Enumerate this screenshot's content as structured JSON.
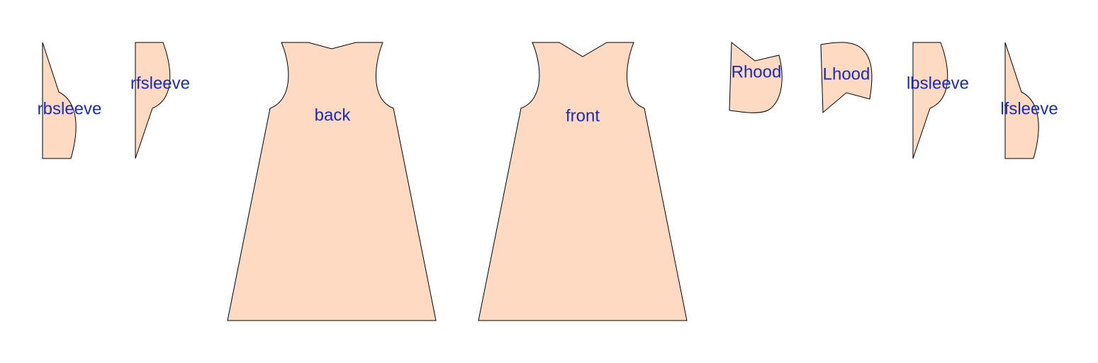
{
  "colors": {
    "piece_fill": "#ffdac2",
    "piece_outline": "#000000",
    "label": "#1a2ab8",
    "background": "#ffffff"
  },
  "pieces": [
    {
      "id": "rbsleeve",
      "label": "rbsleeve"
    },
    {
      "id": "rfsleeve",
      "label": "rfsleeve"
    },
    {
      "id": "back",
      "label": "back"
    },
    {
      "id": "front",
      "label": "front"
    },
    {
      "id": "Rhood",
      "label": "Rhood"
    },
    {
      "id": "Lhood",
      "label": "Lhood"
    },
    {
      "id": "lbsleeve",
      "label": "lbsleeve"
    },
    {
      "id": "lfsleeve",
      "label": "lfsleeve"
    }
  ]
}
